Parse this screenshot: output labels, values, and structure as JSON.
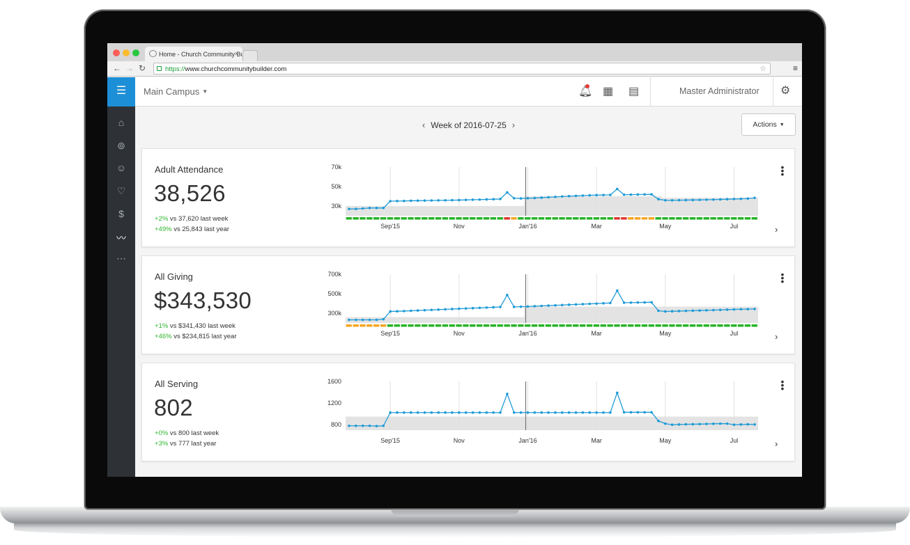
{
  "browser": {
    "tab_title": "Home - Church Community Builder",
    "url_scheme": "https://",
    "url_rest": "www.churchcommunitybuilder.com",
    "icons": {
      "back": "back-arrow-icon",
      "forward": "forward-arrow-icon",
      "reload": "reload-icon",
      "star": "bookmark-star-icon",
      "menu": "menu-icon"
    },
    "close_glyph": "×"
  },
  "header": {
    "campus": "Main Campus",
    "user": "Master Administrator",
    "icons": [
      "notification-bell-icon",
      "calendar-icon",
      "document-icon",
      "gear-icon"
    ]
  },
  "sidebar": {
    "items": [
      "home-icon",
      "groups-icon",
      "people-icon",
      "heart-icon",
      "dollar-icon",
      "activity-icon",
      "more-icon"
    ]
  },
  "week": {
    "label": "Week of 2016-07-25"
  },
  "actions": {
    "label": "Actions"
  },
  "cards": [
    {
      "title": "Adult Attendance",
      "value": "38,526",
      "cmp1_pct": "+2%",
      "cmp1_text": " vs 37,620 last week",
      "cmp2_pct": "+49%",
      "cmp2_text": " vs 25,843 last year"
    },
    {
      "title": "All Giving",
      "value": "$343,530",
      "cmp1_pct": "+1%",
      "cmp1_text": " vs $341,430 last week",
      "cmp2_pct": "+46%",
      "cmp2_text": " vs $234,815 last year"
    },
    {
      "title": "All Serving",
      "value": "802",
      "cmp1_pct": "+0%",
      "cmp1_text": " vs 800 last week",
      "cmp2_pct": "+3%",
      "cmp2_text": " vs 777 last year"
    }
  ],
  "chart_data": [
    {
      "type": "line",
      "ylim": [
        20000,
        70000
      ],
      "yticks": [
        "70k",
        "50k",
        "30k"
      ],
      "ytick_values": [
        70000,
        50000,
        30000
      ],
      "xticks": [
        "Sep'15",
        "Nov",
        "Jan'16",
        "Mar",
        "May",
        "Jul"
      ],
      "xtick_index": [
        6,
        16,
        26,
        36,
        46,
        56
      ],
      "series": [
        {
          "color": "#1f9bd7",
          "values": [
            27000,
            27000,
            27500,
            28000,
            28000,
            28000,
            35000,
            35100,
            35200,
            35400,
            35500,
            35600,
            35700,
            35800,
            35900,
            36000,
            36100,
            36300,
            36500,
            36600,
            36800,
            37000,
            37200,
            44000,
            38000,
            37800,
            38000,
            38200,
            38600,
            39000,
            39400,
            39800,
            40100,
            40400,
            40700,
            41000,
            41200,
            41300,
            41400,
            47500,
            41600,
            41700,
            41800,
            41900,
            42000,
            37000,
            35900,
            35900,
            36000,
            36100,
            36200,
            36300,
            36500,
            36600,
            36800,
            37000,
            37200,
            37400,
            37700,
            38400
          ]
        }
      ],
      "band": [
        [
          20000,
          30000
        ],
        [
          20000,
          30000
        ],
        [
          20000,
          30000
        ],
        [
          20000,
          30000
        ],
        [
          20000,
          30000
        ],
        [
          20000,
          30000
        ],
        [
          20000,
          30000
        ],
        [
          20000,
          30000
        ],
        [
          20000,
          30000
        ],
        [
          20000,
          30000
        ],
        [
          20000,
          30000
        ],
        [
          20000,
          30000
        ],
        [
          20000,
          30000
        ],
        [
          20000,
          30000
        ],
        [
          20000,
          30000
        ],
        [
          20000,
          30000
        ],
        [
          20000,
          30000
        ],
        [
          20000,
          30000
        ],
        [
          20000,
          30000
        ],
        [
          20000,
          30000
        ],
        [
          20000,
          30000
        ],
        [
          20000,
          30000
        ],
        [
          20000,
          30000
        ],
        [
          20000,
          30000
        ],
        [
          20000,
          30000
        ],
        [
          20000,
          30000
        ],
        [
          20000,
          40000
        ],
        [
          20000,
          40000
        ],
        [
          20000,
          40000
        ],
        [
          20000,
          40000
        ],
        [
          20000,
          40000
        ],
        [
          20000,
          40000
        ],
        [
          20000,
          40000
        ],
        [
          20000,
          40000
        ],
        [
          20000,
          40000
        ],
        [
          20000,
          40000
        ],
        [
          20000,
          40000
        ],
        [
          20000,
          40000
        ],
        [
          20000,
          40000
        ],
        [
          20000,
          40000
        ],
        [
          20000,
          40000
        ],
        [
          20000,
          40000
        ],
        [
          20000,
          40000
        ],
        [
          20000,
          40000
        ],
        [
          20000,
          40000
        ],
        [
          20000,
          40000
        ],
        [
          20000,
          38500
        ],
        [
          20000,
          38500
        ],
        [
          20000,
          38500
        ],
        [
          20000,
          38500
        ],
        [
          20000,
          38500
        ],
        [
          20000,
          38500
        ],
        [
          20000,
          38500
        ],
        [
          20000,
          38500
        ],
        [
          20000,
          38500
        ],
        [
          20000,
          38500
        ],
        [
          20000,
          38500
        ],
        [
          20000,
          38500
        ],
        [
          20000,
          38500
        ],
        [
          20000,
          38500
        ]
      ],
      "status": [
        "g",
        "g",
        "g",
        "g",
        "g",
        "g",
        "g",
        "g",
        "g",
        "g",
        "g",
        "g",
        "g",
        "g",
        "g",
        "g",
        "g",
        "g",
        "g",
        "g",
        "g",
        "g",
        "g",
        "r",
        "y",
        "g",
        "g",
        "g",
        "g",
        "g",
        "g",
        "g",
        "g",
        "g",
        "g",
        "g",
        "g",
        "g",
        "g",
        "r",
        "r",
        "y",
        "y",
        "y",
        "y",
        "g",
        "g",
        "g",
        "g",
        "g",
        "g",
        "g",
        "g",
        "g",
        "g",
        "g",
        "g",
        "g",
        "g",
        "g"
      ],
      "status_colors": {
        "g": "#27b427",
        "y": "#f5a623",
        "r": "#e0362c"
      },
      "current_index": 26
    },
    {
      "type": "line",
      "ylim": [
        200000,
        700000
      ],
      "yticks": [
        "700k",
        "500k",
        "300k"
      ],
      "ytick_values": [
        700000,
        500000,
        300000
      ],
      "xticks": [
        "Sep'15",
        "Nov",
        "Jan'16",
        "Mar",
        "May",
        "Jul"
      ],
      "xtick_index": [
        6,
        16,
        26,
        36,
        46,
        56
      ],
      "series": [
        {
          "color": "#1f9bd7",
          "values": [
            232000,
            232000,
            232000,
            232000,
            232000,
            238000,
            318000,
            320000,
            322000,
            325000,
            328000,
            331000,
            334000,
            337000,
            340000,
            343000,
            346000,
            349000,
            352000,
            355000,
            358000,
            361000,
            364000,
            487000,
            365000,
            367000,
            369000,
            372000,
            375000,
            378000,
            381000,
            384000,
            387000,
            390000,
            393000,
            396000,
            399000,
            402000,
            405000,
            532000,
            408000,
            409000,
            410000,
            411000,
            412000,
            325000,
            318000,
            320000,
            322000,
            324000,
            326000,
            328000,
            330000,
            332000,
            334000,
            337000,
            339000,
            341000,
            342000,
            343500
          ]
        }
      ],
      "band": [
        [
          200000,
          270000
        ],
        [
          200000,
          270000
        ],
        [
          200000,
          270000
        ],
        [
          200000,
          270000
        ],
        [
          200000,
          270000
        ],
        [
          200000,
          270000
        ],
        [
          200000,
          270000
        ],
        [
          200000,
          270000
        ],
        [
          200000,
          270000
        ],
        [
          200000,
          270000
        ],
        [
          200000,
          270000
        ],
        [
          200000,
          270000
        ],
        [
          200000,
          270000
        ],
        [
          200000,
          270000
        ],
        [
          200000,
          270000
        ],
        [
          200000,
          270000
        ],
        [
          200000,
          270000
        ],
        [
          200000,
          270000
        ],
        [
          200000,
          270000
        ],
        [
          200000,
          270000
        ],
        [
          200000,
          270000
        ],
        [
          200000,
          270000
        ],
        [
          200000,
          270000
        ],
        [
          200000,
          270000
        ],
        [
          200000,
          270000
        ],
        [
          200000,
          270000
        ],
        [
          200000,
          270000
        ],
        [
          200000,
          270000
        ],
        [
          200000,
          270000
        ],
        [
          200000,
          270000
        ],
        [
          200000,
          270000
        ],
        [
          200000,
          270000
        ],
        [
          200000,
          270000
        ],
        [
          200000,
          270000
        ],
        [
          200000,
          270000
        ],
        [
          200000,
          270000
        ],
        [
          200000,
          270000
        ],
        [
          200000,
          270000
        ],
        [
          200000,
          270000
        ],
        [
          200000,
          270000
        ],
        [
          200000,
          270000
        ],
        [
          200000,
          270000
        ],
        [
          200000,
          270000
        ],
        [
          200000,
          270000
        ],
        [
          200000,
          270000
        ],
        [
          200000,
          270000
        ],
        [
          200000,
          270000
        ],
        [
          200000,
          270000
        ],
        [
          200000,
          270000
        ],
        [
          200000,
          270000
        ],
        [
          200000,
          270000
        ],
        [
          200000,
          270000
        ],
        [
          200000,
          270000
        ],
        [
          200000,
          270000
        ],
        [
          200000,
          270000
        ],
        [
          200000,
          270000
        ],
        [
          200000,
          270000
        ],
        [
          200000,
          270000
        ],
        [
          200000,
          270000
        ],
        [
          200000,
          270000
        ]
      ],
      "band_upper": [
        260000,
        260000,
        260000,
        260000,
        260000,
        260000,
        260000,
        260000,
        260000,
        260000,
        260000,
        260000,
        260000,
        260000,
        260000,
        260000,
        260000,
        260000,
        260000,
        260000,
        260000,
        260000,
        260000,
        260000,
        260000,
        260000,
        368000,
        368000,
        368000,
        368000,
        368000,
        368000,
        368000,
        368000,
        368000,
        368000,
        368000,
        368000,
        368000,
        368000,
        368000,
        368000,
        368000,
        368000,
        368000,
        368000,
        368000,
        368000,
        368000,
        368000,
        368000,
        368000,
        368000,
        368000,
        368000,
        368000,
        368000,
        368000,
        368000,
        368000
      ],
      "status": [
        "y",
        "y",
        "y",
        "y",
        "y",
        "y",
        "g",
        "g",
        "g",
        "g",
        "g",
        "g",
        "g",
        "g",
        "g",
        "g",
        "g",
        "g",
        "g",
        "g",
        "g",
        "g",
        "g",
        "g",
        "g",
        "g",
        "g",
        "g",
        "g",
        "g",
        "g",
        "g",
        "g",
        "g",
        "g",
        "g",
        "g",
        "g",
        "g",
        "g",
        "g",
        "g",
        "g",
        "g",
        "g",
        "g",
        "g",
        "g",
        "g",
        "g",
        "g",
        "g",
        "g",
        "g",
        "g",
        "g",
        "g",
        "g",
        "g",
        "g"
      ],
      "status_colors": {
        "g": "#27b427",
        "y": "#f5a623",
        "r": "#e0362c"
      },
      "current_index": 26
    },
    {
      "type": "line",
      "ylim": [
        700,
        1600
      ],
      "yticks": [
        "1600",
        "1200",
        "800"
      ],
      "ytick_values": [
        1600,
        1200,
        800
      ],
      "xticks": [
        "Sep'15",
        "Nov",
        "Jan'16",
        "Mar",
        "May",
        "Jul"
      ],
      "xtick_index": [
        6,
        16,
        26,
        36,
        46,
        56
      ],
      "series": [
        {
          "color": "#1f9bd7",
          "values": [
            780,
            780,
            780,
            780,
            775,
            780,
            1025,
            1025,
            1025,
            1025,
            1025,
            1025,
            1025,
            1025,
            1025,
            1025,
            1025,
            1025,
            1025,
            1025,
            1025,
            1025,
            1025,
            1370,
            1025,
            1025,
            1025,
            1025,
            1025,
            1025,
            1025,
            1025,
            1025,
            1025,
            1025,
            1025,
            1025,
            1025,
            1025,
            1390,
            1030,
            1030,
            1030,
            1030,
            1030,
            870,
            820,
            800,
            805,
            808,
            810,
            812,
            815,
            818,
            820,
            820,
            800,
            805,
            808,
            805
          ]
        }
      ],
      "band": [],
      "band_upper": [
        950,
        950,
        950,
        950,
        950,
        950,
        950,
        950,
        950,
        950,
        950,
        950,
        950,
        950,
        950,
        950,
        950,
        950,
        950,
        950,
        950,
        950,
        950,
        950,
        950,
        950,
        950,
        950,
        950,
        950,
        950,
        950,
        950,
        950,
        950,
        950,
        950,
        950,
        950,
        950,
        950,
        950,
        950,
        950,
        950,
        950,
        950,
        950,
        950,
        950,
        950,
        950,
        950,
        950,
        950,
        950,
        950,
        950,
        950,
        950
      ],
      "status": [],
      "status_colors": {
        "g": "#27b427",
        "y": "#f5a623",
        "r": "#e0362c"
      },
      "current_index": 26
    }
  ]
}
